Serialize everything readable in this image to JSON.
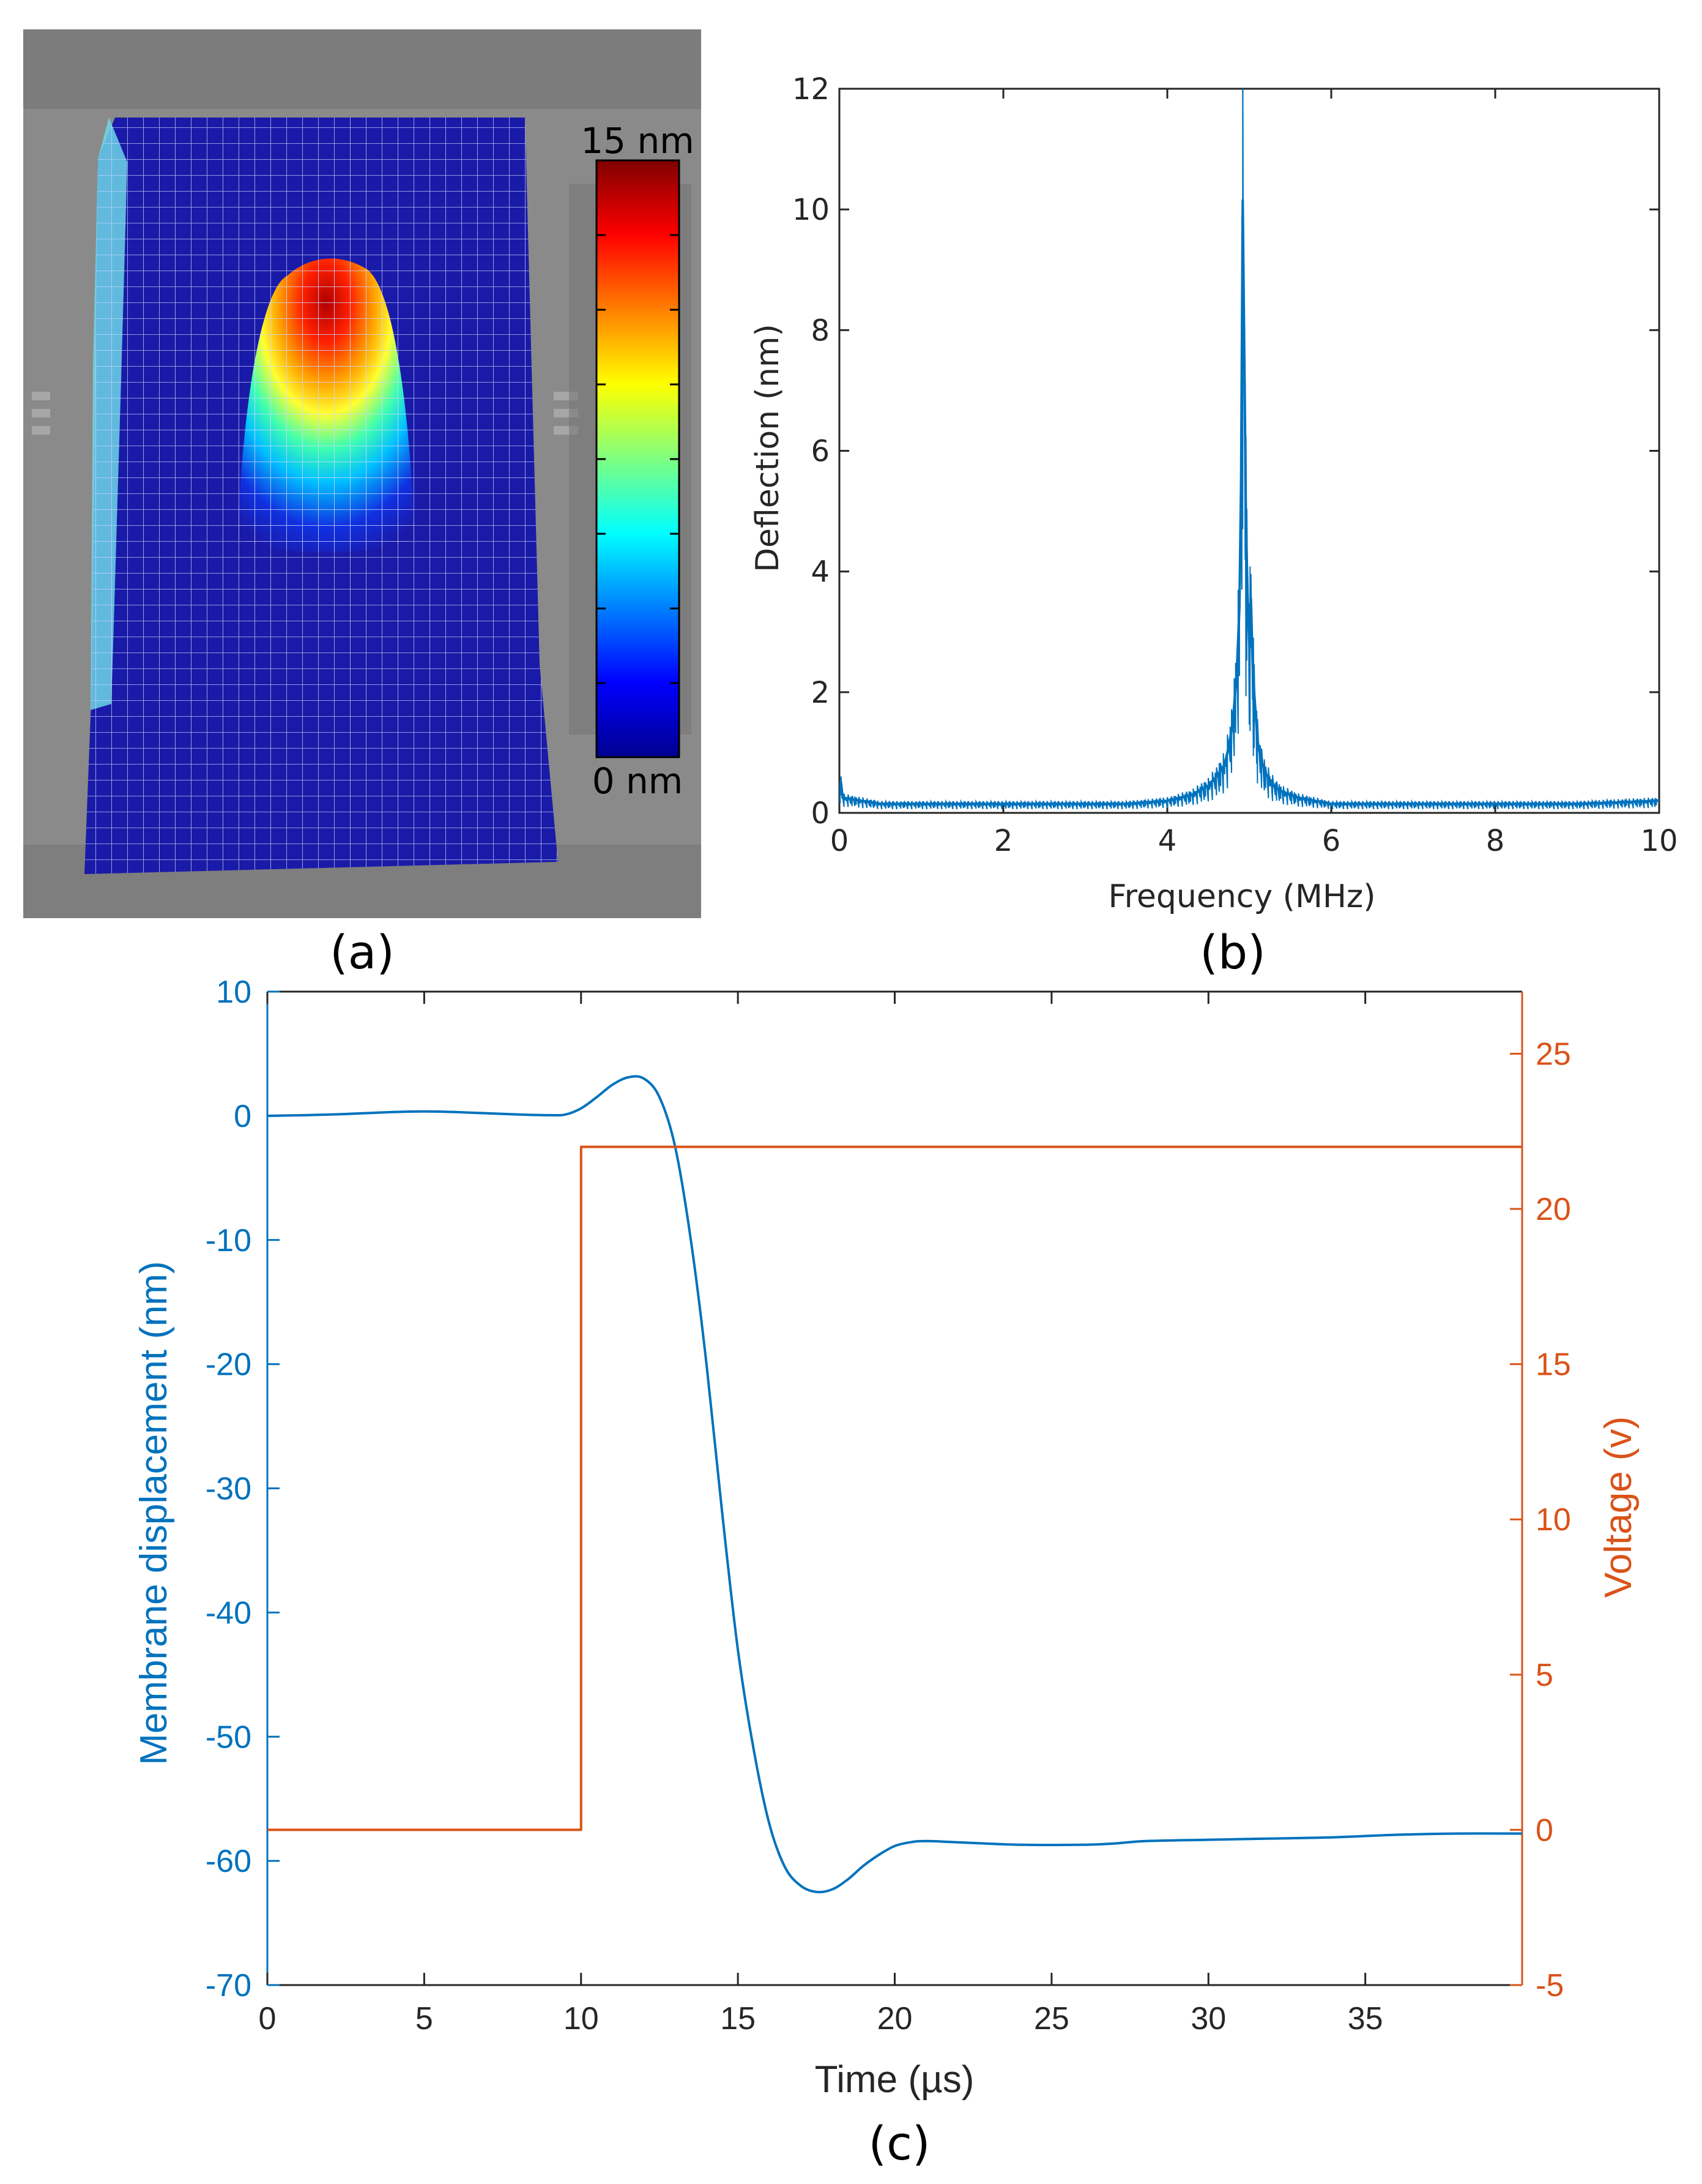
{
  "panel_labels": {
    "a": "(a)",
    "b": "(b)",
    "c": "(c)"
  },
  "colors": {
    "blue": "#0072BD",
    "orange": "#D95319",
    "axis_black": "#262626",
    "gray_bg": "#8a8a8a",
    "surface_blue": "#1a1aa8"
  },
  "chart_data": [
    {
      "id": "a",
      "type": "heatmap",
      "description_type": "3d-surface",
      "colorbar": {
        "max_label": "15 nm",
        "min_label": "0 nm",
        "range": [
          0,
          15
        ],
        "colormap": "jet"
      }
    },
    {
      "id": "b",
      "type": "line",
      "xlabel": "Frequency (MHz)",
      "ylabel": "Deflection (nm)",
      "xlim": [
        0,
        10
      ],
      "ylim": [
        0,
        12
      ],
      "xticks": [
        0,
        2,
        4,
        6,
        8,
        10
      ],
      "yticks": [
        0,
        2,
        4,
        6,
        8,
        10,
        12
      ],
      "series": [
        {
          "color": "#0072BD",
          "x": [
            0,
            0.02,
            0.04,
            0.5,
            1,
            2,
            3,
            3.5,
            4,
            4.3,
            4.5,
            4.6,
            4.7,
            4.75,
            4.8,
            4.85,
            4.88,
            4.9,
            4.92,
            4.94,
            4.96,
            4.98,
            5.0,
            5.02,
            5.04,
            5.06,
            5.08,
            5.1,
            5.15,
            5.2,
            5.3,
            5.4,
            5.6,
            6,
            7,
            8,
            9,
            10
          ],
          "y": [
            0.3,
            0.5,
            0.25,
            0.15,
            0.15,
            0.15,
            0.15,
            0.15,
            0.2,
            0.3,
            0.45,
            0.6,
            0.8,
            1.1,
            1.5,
            2.4,
            3.4,
            5.5,
            10.15,
            7.5,
            4.8,
            3.6,
            2.8,
            3.55,
            2.5,
            2.0,
            1.6,
            1.2,
            0.85,
            0.65,
            0.45,
            0.35,
            0.25,
            0.15,
            0.15,
            0.15,
            0.15,
            0.2
          ]
        }
      ]
    },
    {
      "id": "c",
      "type": "line",
      "xlabel": "Time (µs)",
      "ylabel_left": "Membrane displacement (nm)",
      "ylabel_right": "Voltage (v)",
      "xlim": [
        0,
        40
      ],
      "ylim_left": [
        -70,
        10
      ],
      "ylim_right": [
        -5,
        27
      ],
      "xticks": [
        0,
        5,
        10,
        15,
        20,
        25,
        30,
        35
      ],
      "yticks_left": [
        10,
        0,
        -10,
        -20,
        -30,
        -40,
        -50,
        -60,
        -70
      ],
      "yticks_right": [
        25,
        20,
        15,
        10,
        5,
        0,
        -5
      ],
      "series": [
        {
          "axis": "left",
          "color": "#0072BD",
          "x": [
            0,
            2,
            4,
            5,
            6,
            8,
            9,
            9.5,
            10,
            10.5,
            11,
            11.5,
            12,
            12.5,
            13,
            13.5,
            14,
            14.5,
            15,
            15.5,
            16,
            16.5,
            17,
            17.5,
            18,
            18.5,
            19,
            19.5,
            20,
            20.5,
            21,
            22,
            24,
            26,
            27,
            28,
            30,
            32,
            34,
            36,
            38,
            40
          ],
          "y": [
            0,
            0.1,
            0.3,
            0.35,
            0.3,
            0.1,
            0.05,
            0.1,
            0.6,
            1.5,
            2.5,
            3.1,
            3.0,
            1.5,
            -2.5,
            -10,
            -20,
            -32,
            -43,
            -51,
            -57,
            -60.5,
            -62,
            -62.5,
            -62.3,
            -61.5,
            -60.4,
            -59.5,
            -58.8,
            -58.5,
            -58.4,
            -58.5,
            -58.7,
            -58.7,
            -58.6,
            -58.4,
            -58.3,
            -58.2,
            -58.1,
            -57.9,
            -57.8,
            -57.8
          ]
        },
        {
          "axis": "right",
          "color": "#D95319",
          "x": [
            0,
            10,
            10,
            40
          ],
          "y": [
            0,
            0,
            22,
            22
          ]
        }
      ]
    }
  ]
}
